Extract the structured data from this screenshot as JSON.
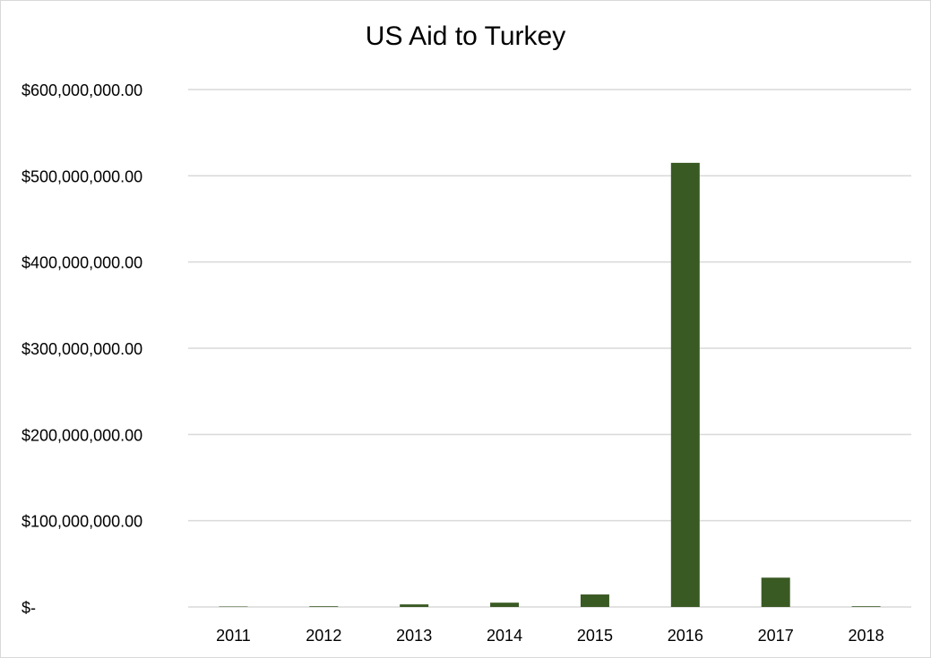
{
  "chart_data": {
    "type": "bar",
    "title": "US Aid to Turkey",
    "xlabel": "",
    "ylabel": "",
    "categories": [
      "2011",
      "2012",
      "2013",
      "2014",
      "2015",
      "2016",
      "2017",
      "2018"
    ],
    "series": [
      {
        "values": [
          500000,
          800000,
          3000000,
          5000000,
          14500000,
          515000000,
          34000000,
          800000
        ]
      }
    ],
    "ylim": [
      0,
      600000000
    ],
    "yticks": [
      0,
      100000000,
      200000000,
      300000000,
      400000000,
      500000000,
      600000000
    ],
    "ytick_labels": [
      "$-",
      "$100,000,000.00",
      "$200,000,000.00",
      "$300,000,000.00",
      "$400,000,000.00",
      "$500,000,000.00",
      "$600,000,000.00"
    ],
    "grid": true,
    "legend": "none",
    "bar_color": "#3a5a24"
  }
}
